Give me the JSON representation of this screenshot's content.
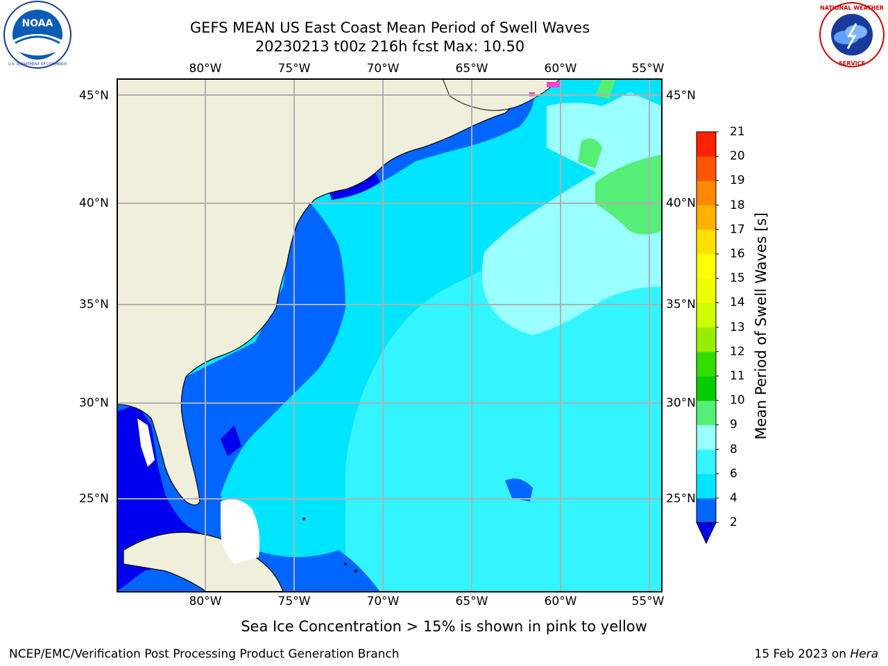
{
  "title_line1": "GEFS MEAN US East Coast Mean Period of Swell Waves",
  "title_line2": "20230213 t00z 216h fcst   Max: 10.50",
  "longitude_labels": [
    "80°W",
    "75°W",
    "70°W",
    "65°W",
    "60°W",
    "55°W"
  ],
  "latitude_labels": [
    "45°N",
    "40°N",
    "35°N",
    "30°N",
    "25°N"
  ],
  "colorbar": {
    "title": "Mean Period of Swell Waves [s]",
    "ticks": [
      "2",
      "4",
      "6",
      "8",
      "9",
      "10",
      "11",
      "12",
      "13",
      "14",
      "15",
      "16",
      "17",
      "18",
      "19",
      "20",
      "21"
    ],
    "colors": [
      "#0066ff",
      "#00e5ff",
      "#33f5ff",
      "#99ffff",
      "#55ee77",
      "#00cc00",
      "#33dd00",
      "#99ee00",
      "#ccff00",
      "#eeff00",
      "#ffff00",
      "#ffe000",
      "#ffb000",
      "#ff8800",
      "#ff5500",
      "#ff2200"
    ],
    "extend_color": "#0000ee"
  },
  "sea_ice_note": "Sea Ice Concentration > 15% is shown in pink to yellow",
  "footer_left": "NCEP/EMC/Verification Post Processing Product Generation Branch",
  "footer_date": "15 Feb 2023 on",
  "footer_machine": "Hera",
  "logos": {
    "left": "NOAA",
    "right": "NATIONAL WEATHER SERVICE"
  },
  "map_colors": {
    "land": "#efefdc",
    "dark_blue": "#0000ee",
    "mid_blue": "#0066ff",
    "cyan": "#00e5ff",
    "light_cyan": "#33f5ff",
    "pale_cyan": "#99ffff",
    "green": "#55ee77",
    "grid": "#b0b0b0"
  }
}
